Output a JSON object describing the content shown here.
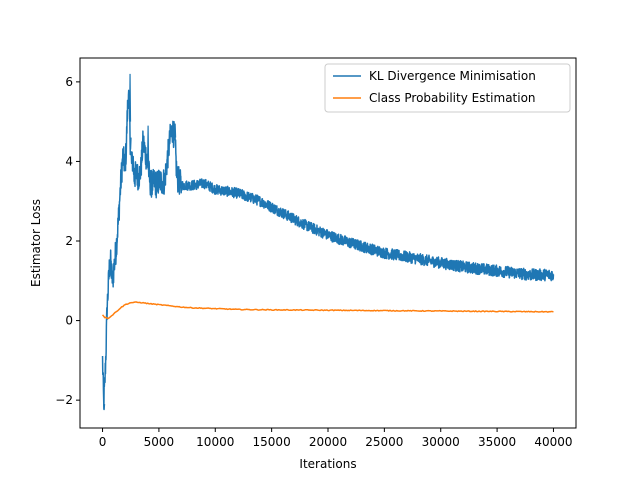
{
  "chart_data": {
    "type": "line",
    "title": "",
    "xlabel": "Iterations",
    "ylabel": "Estimator Loss",
    "xlim": [
      -2000,
      42000
    ],
    "ylim": [
      -2.7,
      6.6
    ],
    "xticks": [
      0,
      5000,
      10000,
      15000,
      20000,
      25000,
      30000,
      35000,
      40000
    ],
    "yticks": [
      -2,
      0,
      2,
      4,
      6
    ],
    "grid": false,
    "legend_position": "top-right",
    "series": [
      {
        "name": "KL Divergence Minimisation",
        "color": "#1f77b4",
        "noisy": true,
        "x": [
          0,
          100,
          200,
          300,
          400,
          500,
          600,
          700,
          800,
          900,
          1000,
          1200,
          1400,
          1600,
          1800,
          2000,
          2100,
          2200,
          2300,
          2400,
          2500,
          2600,
          2700,
          2800,
          3000,
          3200,
          3400,
          3600,
          3800,
          4000,
          4200,
          4400,
          4600,
          4800,
          5000,
          5500,
          6000,
          6200,
          6400,
          6600,
          6800,
          7000,
          8000,
          9000,
          10000,
          12000,
          14000,
          16000,
          18000,
          20000,
          22000,
          25000,
          28000,
          30000,
          32000,
          35000,
          38000,
          40000
        ],
        "y": [
          -1.0,
          -2.1,
          -1.6,
          -0.8,
          0.3,
          0.8,
          1.3,
          1.5,
          1.2,
          1.0,
          1.3,
          1.8,
          2.5,
          3.4,
          4.1,
          3.9,
          4.3,
          5.2,
          5.8,
          5.0,
          4.2,
          3.9,
          4.1,
          3.6,
          3.7,
          3.6,
          3.8,
          4.5,
          4.2,
          4.0,
          3.5,
          3.4,
          3.5,
          3.4,
          3.5,
          3.5,
          4.6,
          4.8,
          4.6,
          3.6,
          3.5,
          3.4,
          3.4,
          3.45,
          3.3,
          3.2,
          3.0,
          2.7,
          2.4,
          2.15,
          1.95,
          1.7,
          1.55,
          1.45,
          1.35,
          1.25,
          1.15,
          1.15
        ]
      },
      {
        "name": "Class Probability Estimation",
        "color": "#ff7f0e",
        "noisy": false,
        "x": [
          0,
          200,
          500,
          800,
          1200,
          1600,
          2000,
          2500,
          3000,
          3500,
          4000,
          5000,
          6000,
          7000,
          8000,
          10000,
          12000,
          15000,
          20000,
          25000,
          30000,
          35000,
          40000
        ],
        "y": [
          0.15,
          0.08,
          0.06,
          0.12,
          0.22,
          0.32,
          0.4,
          0.45,
          0.46,
          0.45,
          0.43,
          0.4,
          0.37,
          0.34,
          0.32,
          0.3,
          0.28,
          0.27,
          0.26,
          0.25,
          0.24,
          0.23,
          0.22
        ]
      }
    ]
  }
}
